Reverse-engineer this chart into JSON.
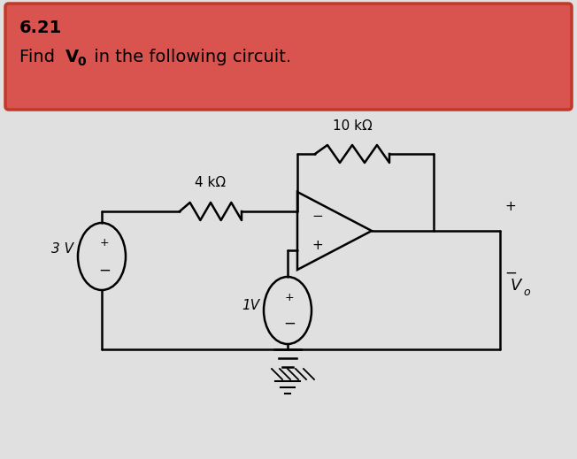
{
  "title_line1": "6.21",
  "title_bold": "V",
  "title_sub": "0",
  "header_bg": "#d9534f",
  "header_border": "#c0392b",
  "bg_color": "#e0e0e0",
  "resistor_4k_label": "4 kΩ",
  "resistor_10k_label": "10 kΩ",
  "source_3v_label": "3 V",
  "source_1v_label": "1V",
  "vo_label": "V",
  "vo_sub": "o",
  "lw": 1.8
}
